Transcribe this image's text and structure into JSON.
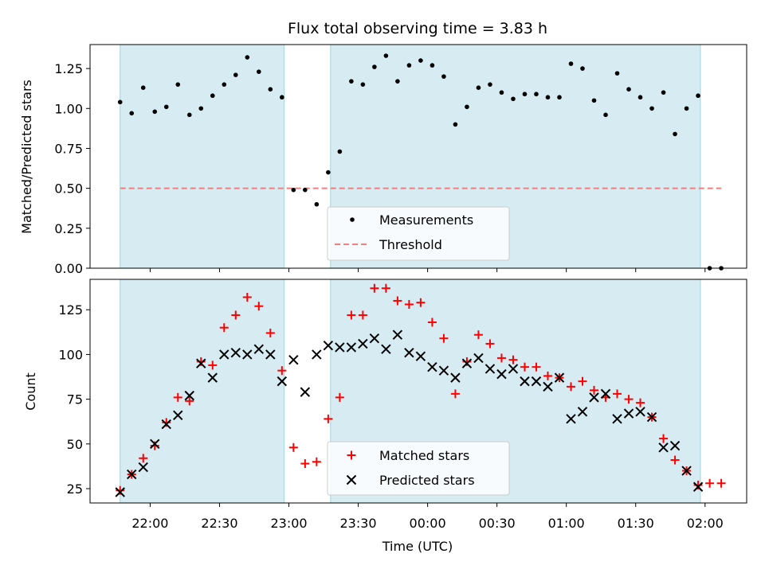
{
  "chart_data": [
    {
      "type": "scatter",
      "title": "Flux total observing time = 3.83 h",
      "xlabel": "",
      "ylabel": "Matched/Predicted stars",
      "ylim": [
        0,
        1.4
      ],
      "yticks": [
        "0.00",
        "0.25",
        "0.50",
        "0.75",
        "1.00",
        "1.25"
      ],
      "grid": false,
      "legend_position": "lower-center",
      "legend": [
        "Measurements",
        "Threshold"
      ],
      "colors": {
        "measurements": "#000000",
        "threshold": "#f08080",
        "shade": "#add8e6"
      },
      "threshold": 0.5,
      "x_unit": "minutes after 21:00 UTC",
      "series": [
        {
          "name": "Measurements",
          "points": [
            [
              47,
              1.04
            ],
            [
              52,
              0.97
            ],
            [
              57,
              1.13
            ],
            [
              62,
              0.98
            ],
            [
              67,
              1.01
            ],
            [
              72,
              1.15
            ],
            [
              77,
              0.96
            ],
            [
              82,
              1.0
            ],
            [
              87,
              1.08
            ],
            [
              92,
              1.15
            ],
            [
              97,
              1.21
            ],
            [
              102,
              1.32
            ],
            [
              107,
              1.23
            ],
            [
              112,
              1.12
            ],
            [
              117,
              1.07
            ],
            [
              122,
              0.49
            ],
            [
              127,
              0.49
            ],
            [
              132,
              0.4
            ],
            [
              137,
              0.6
            ],
            [
              142,
              0.73
            ],
            [
              147,
              1.17
            ],
            [
              152,
              1.15
            ],
            [
              157,
              1.26
            ],
            [
              162,
              1.33
            ],
            [
              167,
              1.17
            ],
            [
              172,
              1.27
            ],
            [
              177,
              1.3
            ],
            [
              182,
              1.27
            ],
            [
              187,
              1.2
            ],
            [
              192,
              0.9
            ],
            [
              197,
              1.01
            ],
            [
              202,
              1.13
            ],
            [
              207,
              1.15
            ],
            [
              212,
              1.1
            ],
            [
              217,
              1.06
            ],
            [
              222,
              1.09
            ],
            [
              227,
              1.09
            ],
            [
              232,
              1.07
            ],
            [
              237,
              1.07
            ],
            [
              242,
              1.28
            ],
            [
              247,
              1.25
            ],
            [
              252,
              1.05
            ],
            [
              257,
              0.96
            ],
            [
              262,
              1.22
            ],
            [
              267,
              1.12
            ],
            [
              272,
              1.07
            ],
            [
              277,
              1.0
            ],
            [
              282,
              1.1
            ],
            [
              287,
              0.84
            ],
            [
              292,
              1.0
            ],
            [
              297,
              1.08
            ],
            [
              302,
              0.0
            ],
            [
              307,
              0.0
            ]
          ]
        }
      ]
    },
    {
      "type": "scatter",
      "title": "",
      "xlabel": "Time (UTC)",
      "ylabel": "Count",
      "ylim": [
        17,
        142
      ],
      "yticks": [
        "25",
        "50",
        "75",
        "100",
        "125"
      ],
      "xlim": [
        34,
        318
      ],
      "x_tick_values": [
        60,
        90,
        120,
        150,
        180,
        210,
        240,
        270,
        300
      ],
      "x_tick_labels": [
        "22:00",
        "22:30",
        "23:00",
        "23:30",
        "00:00",
        "00:30",
        "01:00",
        "01:30",
        "02:00"
      ],
      "grid": false,
      "legend_position": "lower-center",
      "legend": [
        "Matched stars",
        "Predicted stars"
      ],
      "colors": {
        "matched": "#ff0000",
        "predicted": "#000000",
        "shade": "#add8e6"
      },
      "x_unit": "minutes after 21:00 UTC",
      "series": [
        {
          "name": "Matched stars",
          "points": [
            [
              47,
              24
            ],
            [
              52,
              33
            ],
            [
              57,
              42
            ],
            [
              62,
              49
            ],
            [
              67,
              62
            ],
            [
              72,
              76
            ],
            [
              77,
              74
            ],
            [
              82,
              96
            ],
            [
              87,
              94
            ],
            [
              92,
              115
            ],
            [
              97,
              122
            ],
            [
              102,
              132
            ],
            [
              107,
              127
            ],
            [
              112,
              112
            ],
            [
              117,
              91
            ],
            [
              122,
              48
            ],
            [
              127,
              39
            ],
            [
              132,
              40
            ],
            [
              137,
              64
            ],
            [
              142,
              76
            ],
            [
              147,
              122
            ],
            [
              152,
              122
            ],
            [
              157,
              137
            ],
            [
              162,
              137
            ],
            [
              167,
              130
            ],
            [
              172,
              128
            ],
            [
              177,
              129
            ],
            [
              182,
              118
            ],
            [
              187,
              109
            ],
            [
              192,
              78
            ],
            [
              197,
              96
            ],
            [
              202,
              111
            ],
            [
              207,
              106
            ],
            [
              212,
              98
            ],
            [
              217,
              97
            ],
            [
              222,
              93
            ],
            [
              227,
              93
            ],
            [
              232,
              88
            ],
            [
              237,
              87
            ],
            [
              242,
              82
            ],
            [
              247,
              85
            ],
            [
              252,
              80
            ],
            [
              257,
              76
            ],
            [
              262,
              78
            ],
            [
              267,
              75
            ],
            [
              272,
              73
            ],
            [
              277,
              65
            ],
            [
              282,
              53
            ],
            [
              287,
              41
            ],
            [
              292,
              35
            ],
            [
              297,
              27
            ],
            [
              302,
              28
            ],
            [
              307,
              28
            ]
          ]
        },
        {
          "name": "Predicted stars",
          "points": [
            [
              47,
              23
            ],
            [
              52,
              33
            ],
            [
              57,
              37
            ],
            [
              62,
              50
            ],
            [
              67,
              61
            ],
            [
              72,
              66
            ],
            [
              77,
              77
            ],
            [
              82,
              95
            ],
            [
              87,
              87
            ],
            [
              92,
              100
            ],
            [
              97,
              101
            ],
            [
              102,
              100
            ],
            [
              107,
              103
            ],
            [
              112,
              100
            ],
            [
              117,
              85
            ],
            [
              122,
              97
            ],
            [
              127,
              79
            ],
            [
              132,
              100
            ],
            [
              137,
              105
            ],
            [
              142,
              104
            ],
            [
              147,
              104
            ],
            [
              152,
              106
            ],
            [
              157,
              109
            ],
            [
              162,
              103
            ],
            [
              167,
              111
            ],
            [
              172,
              101
            ],
            [
              177,
              99
            ],
            [
              182,
              93
            ],
            [
              187,
              91
            ],
            [
              192,
              87
            ],
            [
              197,
              95
            ],
            [
              202,
              98
            ],
            [
              207,
              92
            ],
            [
              212,
              89
            ],
            [
              217,
              92
            ],
            [
              222,
              85
            ],
            [
              227,
              85
            ],
            [
              232,
              82
            ],
            [
              237,
              87
            ],
            [
              242,
              64
            ],
            [
              247,
              68
            ],
            [
              252,
              76
            ],
            [
              257,
              78
            ],
            [
              262,
              64
            ],
            [
              267,
              67
            ],
            [
              272,
              68
            ],
            [
              277,
              65
            ],
            [
              282,
              48
            ],
            [
              287,
              49
            ],
            [
              292,
              35
            ],
            [
              297,
              26
            ]
          ]
        }
      ]
    }
  ],
  "shaded_intervals": [
    [
      47,
      118
    ],
    [
      138,
      298
    ]
  ]
}
